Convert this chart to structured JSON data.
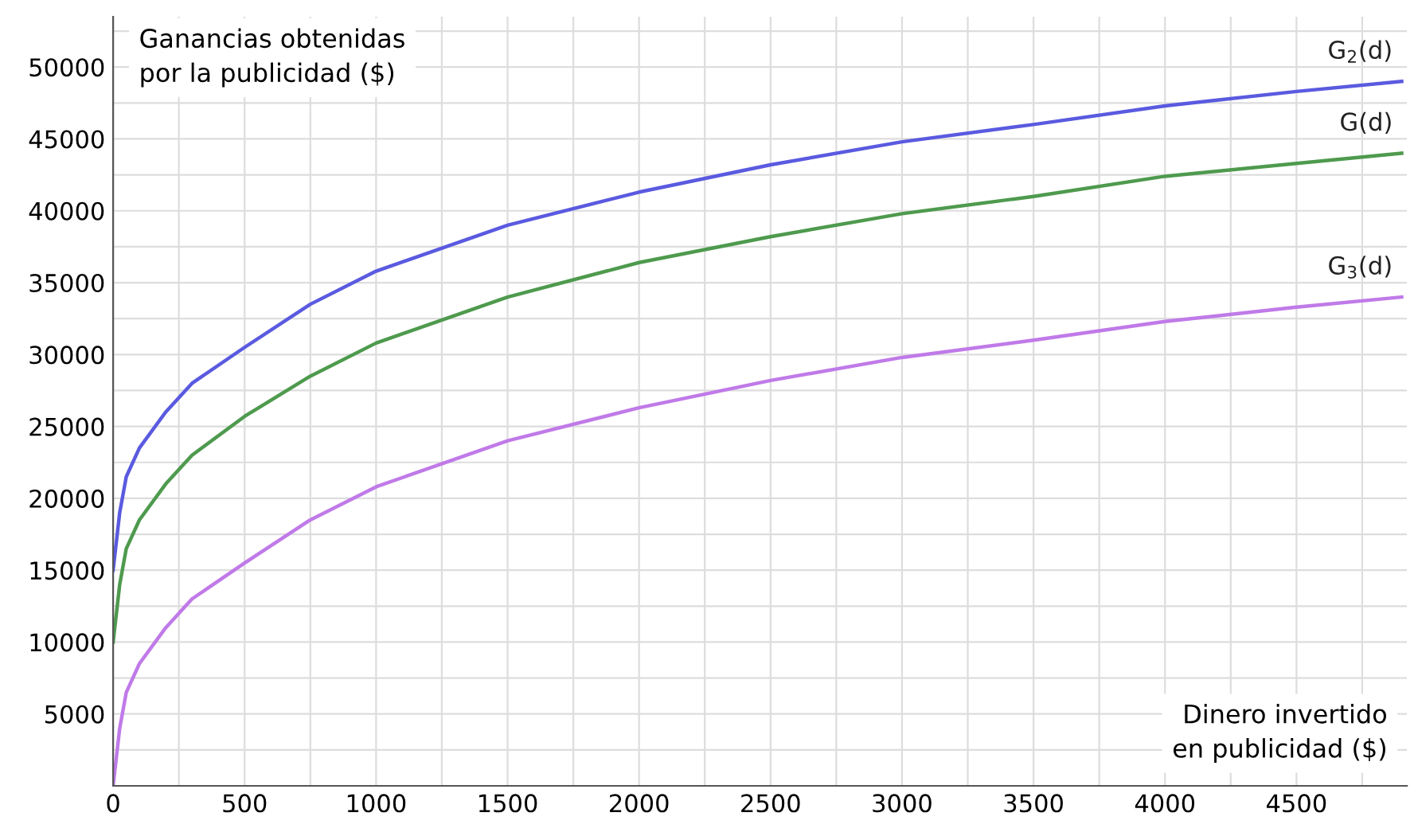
{
  "chart_data": {
    "type": "line",
    "xlabel": "Dinero invertido\nen publicidad ($)",
    "ylabel": "Ganancias obtenidas\npor la publicidad ($)",
    "x": [
      0,
      25,
      50,
      100,
      200,
      300,
      500,
      750,
      1000,
      1500,
      2000,
      2500,
      3000,
      3500,
      4000,
      4500,
      4900
    ],
    "series": [
      {
        "name": "G$_{2}$(d)",
        "color": "#5a5ae0",
        "values": [
          15000,
          19000,
          21500,
          23500,
          26000,
          28000,
          30500,
          33500,
          35800,
          39000,
          41300,
          43200,
          44800,
          46000,
          47300,
          48300,
          49000
        ]
      },
      {
        "name": "G(d)",
        "color": "#4e9a4e",
        "values": [
          10000,
          14000,
          16500,
          18500,
          21000,
          23000,
          25700,
          28500,
          30800,
          34000,
          36400,
          38200,
          39800,
          41000,
          42400,
          43300,
          44000
        ]
      },
      {
        "name": "G$_{3}$(d)",
        "color": "#c07ae8",
        "values": [
          0,
          4000,
          6500,
          8500,
          11000,
          13000,
          15500,
          18500,
          20800,
          24000,
          26300,
          28200,
          29800,
          31000,
          32300,
          33300,
          34000
        ]
      }
    ],
    "xlim": [
      0,
      4920
    ],
    "ylim": [
      0,
      53500
    ],
    "xticks": [
      0,
      {
        "value": 250,
        "label": null
      },
      500,
      {
        "value": 750,
        "label": null
      },
      1000,
      {
        "value": 1250,
        "label": null
      },
      1500,
      {
        "value": 1750,
        "label": null
      },
      2000,
      {
        "value": 2250,
        "label": null
      },
      2500,
      {
        "value": 2750,
        "label": null
      },
      3000,
      {
        "value": 3250,
        "label": null
      },
      3500,
      {
        "value": 3750,
        "label": null
      },
      4000,
      {
        "value": 4250,
        "label": null
      },
      4500,
      {
        "value": 4750,
        "label": null
      }
    ],
    "yticks": [
      {
        "value": 0,
        "label": null
      },
      {
        "value": 2500,
        "label": null
      },
      5000,
      {
        "value": 7500,
        "label": null
      },
      10000,
      {
        "value": 12500,
        "label": null
      },
      15000,
      {
        "value": 17500,
        "label": null
      },
      20000,
      {
        "value": 22500,
        "label": null
      },
      25000,
      {
        "value": 27500,
        "label": null
      },
      30000,
      {
        "value": 32500,
        "label": null
      },
      35000,
      {
        "value": 37500,
        "label": null
      },
      40000,
      {
        "value": 42500,
        "label": null
      },
      45000,
      {
        "value": 47500,
        "label": null
      },
      50000,
      {
        "value": 52500,
        "label": null
      }
    ],
    "grid": true,
    "legend": false,
    "marker": "none",
    "line_style": "solid"
  }
}
